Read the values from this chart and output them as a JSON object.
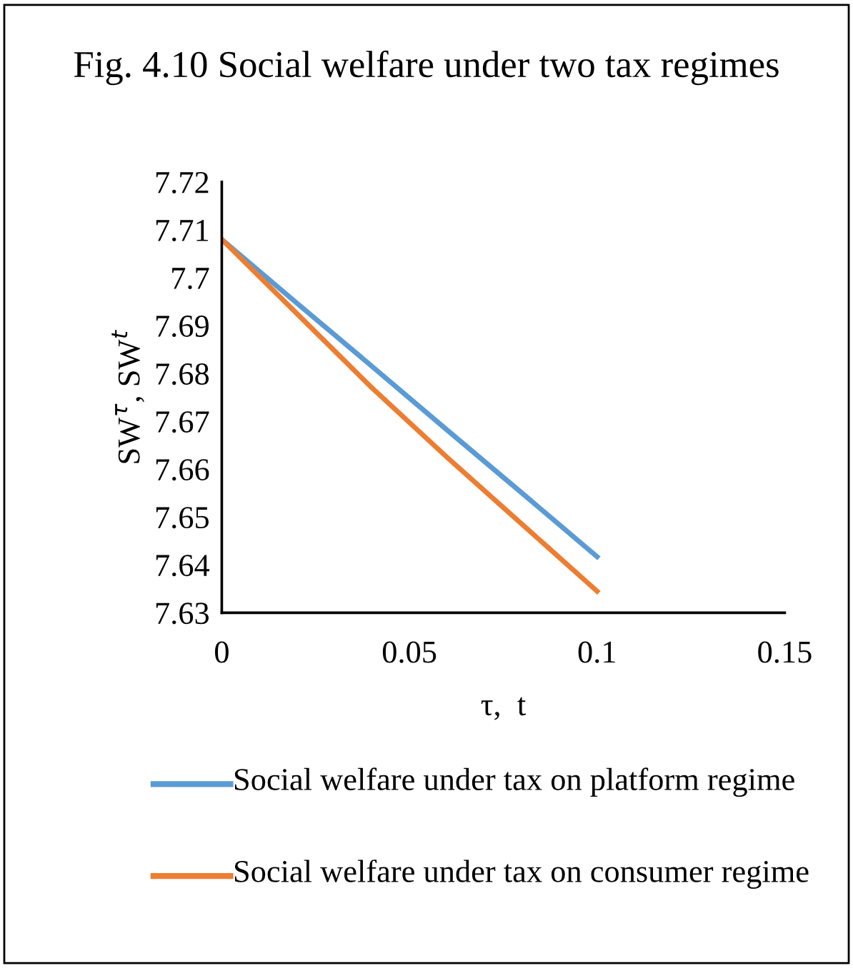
{
  "chart_data": {
    "type": "line",
    "title": "Fig. 4.10 Social welfare under two tax regimes",
    "xlabel": "τ,  t",
    "ylabel": "SW$^{τ}$, SW$^{t}$",
    "series": [
      {
        "name": "Social welfare under tax on platform regime",
        "color": "#5b9bd5",
        "x": [
          0,
          0.02,
          0.04,
          0.06,
          0.08,
          0.1
        ],
        "values": [
          7.708,
          7.6947,
          7.6815,
          7.6682,
          7.655,
          7.6417
        ]
      },
      {
        "name": "Social welfare under tax on consumer regime",
        "color": "#ed7d31",
        "x": [
          0,
          0.02,
          0.04,
          0.06,
          0.08,
          0.1
        ],
        "values": [
          7.708,
          7.6925,
          7.677,
          7.6625,
          7.6485,
          7.6345
        ]
      }
    ],
    "xlim": [
      0,
      0.15
    ],
    "xticks": [
      0,
      0.05,
      0.1,
      0.15
    ],
    "ylim": [
      7.63,
      7.72
    ],
    "yticks": [
      7.63,
      7.64,
      7.65,
      7.66,
      7.67,
      7.68,
      7.69,
      {
        "value": 7.7,
        "label": "7.7"
      },
      7.71,
      7.72
    ],
    "grid": false,
    "legend": "bottom",
    "marker": "none",
    "line_style": "solid"
  }
}
